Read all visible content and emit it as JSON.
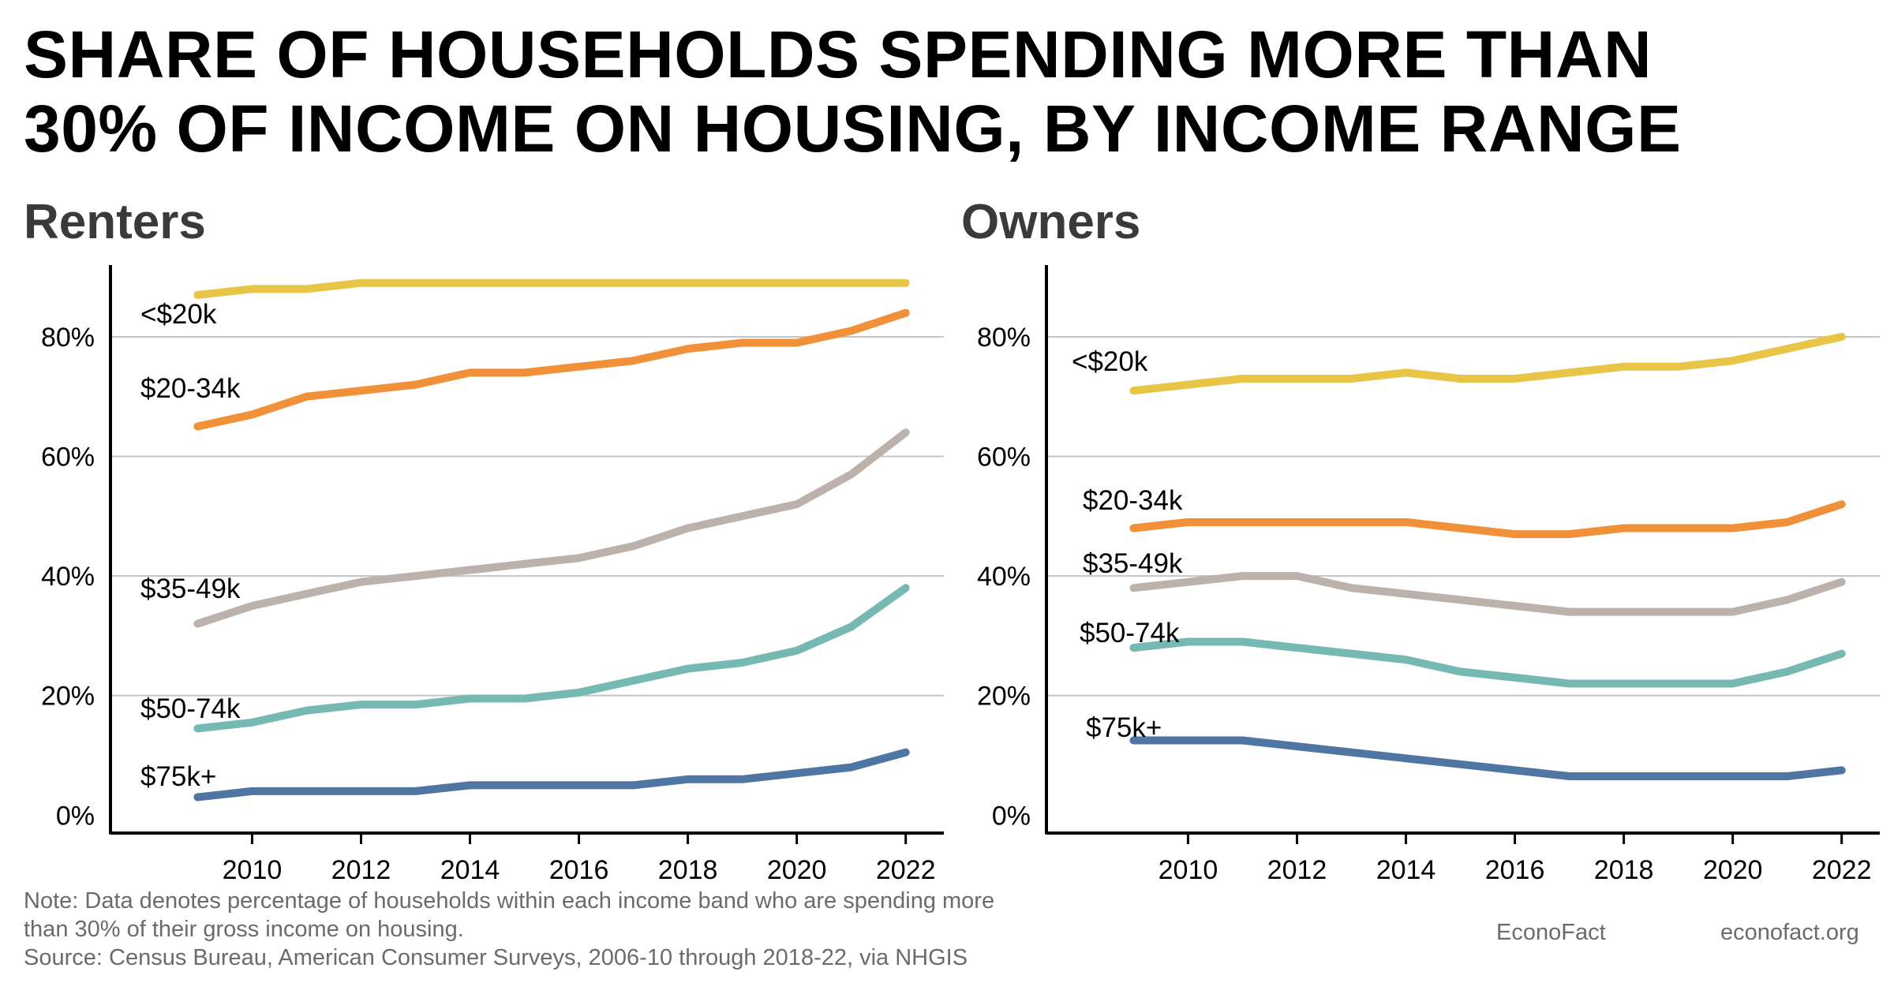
{
  "title_lines": [
    "SHARE OF HOUSEHOLDS SPENDING MORE THAN",
    "30% OF INCOME ON HOUSING, BY INCOME RANGE"
  ],
  "footer": {
    "note_lines": [
      "Note: Data denotes percentage of households within each income band who are spending more",
      "than 30% of their gross income on housing.",
      "Source: Census Bureau, American Consumer Surveys, 2006-10 through 2018-22, via NHGIS"
    ],
    "credit_name": "EconoFact",
    "credit_url": "econofact.org"
  },
  "chart_data": [
    {
      "type": "line",
      "title": "Renters",
      "x": [
        2009,
        2010,
        2011,
        2012,
        2013,
        2014,
        2015,
        2016,
        2017,
        2018,
        2019,
        2020,
        2021,
        2022
      ],
      "xticks": [
        2010,
        2012,
        2014,
        2016,
        2018,
        2020,
        2022
      ],
      "xlim": [
        2007.4,
        2022.7
      ],
      "yticks": [
        0,
        20,
        40,
        60,
        80
      ],
      "ytick_labels": [
        "0%",
        "20%",
        "40%",
        "60%",
        "80%"
      ],
      "ylim": [
        -3,
        92
      ],
      "grid": true,
      "series": [
        {
          "name": "<$20k",
          "color": "#e8c547",
          "values": [
            87,
            88,
            88,
            89,
            89,
            89,
            89,
            89,
            89,
            89,
            89,
            89,
            89,
            89
          ]
        },
        {
          "name": "$20-34k",
          "color": "#f0913a",
          "values": [
            65,
            67,
            70,
            71,
            72,
            74,
            74,
            75,
            76,
            78,
            79,
            79,
            81,
            84
          ]
        },
        {
          "name": "$35-49k",
          "color": "#bdb1ab",
          "values": [
            32,
            35,
            37,
            39,
            40,
            41,
            42,
            43,
            45,
            48,
            50,
            52,
            57,
            64
          ]
        },
        {
          "name": "$50-74k",
          "color": "#76b9b3",
          "values": [
            14.5,
            15.5,
            17.5,
            18.5,
            18.5,
            19.5,
            19.5,
            20.5,
            22.5,
            24.5,
            25.5,
            27.5,
            31.5,
            38
          ]
        },
        {
          "name": "$75k+",
          "color": "#4f76a3",
          "values": [
            3,
            4,
            4,
            4,
            4,
            5,
            5,
            5,
            5,
            6,
            6,
            7,
            8,
            10.5
          ]
        }
      ]
    },
    {
      "type": "line",
      "title": "Owners",
      "x": [
        2009,
        2010,
        2011,
        2012,
        2013,
        2014,
        2015,
        2016,
        2017,
        2018,
        2019,
        2020,
        2021,
        2022
      ],
      "xticks": [
        2010,
        2012,
        2014,
        2016,
        2018,
        2020,
        2022
      ],
      "xlim": [
        2007.4,
        2022.7
      ],
      "yticks": [
        0,
        20,
        40,
        60,
        80
      ],
      "ytick_labels": [
        "0%",
        "20%",
        "40%",
        "60%",
        "80%"
      ],
      "ylim": [
        -3,
        92
      ],
      "grid": true,
      "series": [
        {
          "name": "<$20k",
          "color": "#e8c547",
          "values": [
            71,
            72,
            73,
            73,
            73,
            74,
            73,
            73,
            74,
            75,
            75,
            76,
            78,
            80
          ]
        },
        {
          "name": "$20-34k",
          "color": "#f0913a",
          "values": [
            48,
            49,
            49,
            49,
            49,
            49,
            48,
            47,
            47,
            48,
            48,
            48,
            49,
            52
          ]
        },
        {
          "name": "$35-49k",
          "color": "#bdb1ab",
          "values": [
            38,
            39,
            40,
            40,
            38,
            37,
            36,
            35,
            34,
            34,
            34,
            34,
            36,
            39
          ]
        },
        {
          "name": "$50-74k",
          "color": "#76b9b3",
          "values": [
            28,
            29,
            29,
            28,
            27,
            26,
            24,
            23,
            22,
            22,
            22,
            22,
            24,
            27
          ]
        },
        {
          "name": "$75k+",
          "color": "#4f76a3",
          "values": [
            12.5,
            12.5,
            12.5,
            11.5,
            10.5,
            9.5,
            8.5,
            7.5,
            6.5,
            6.5,
            6.5,
            6.5,
            6.5,
            7.5
          ]
        }
      ]
    }
  ]
}
